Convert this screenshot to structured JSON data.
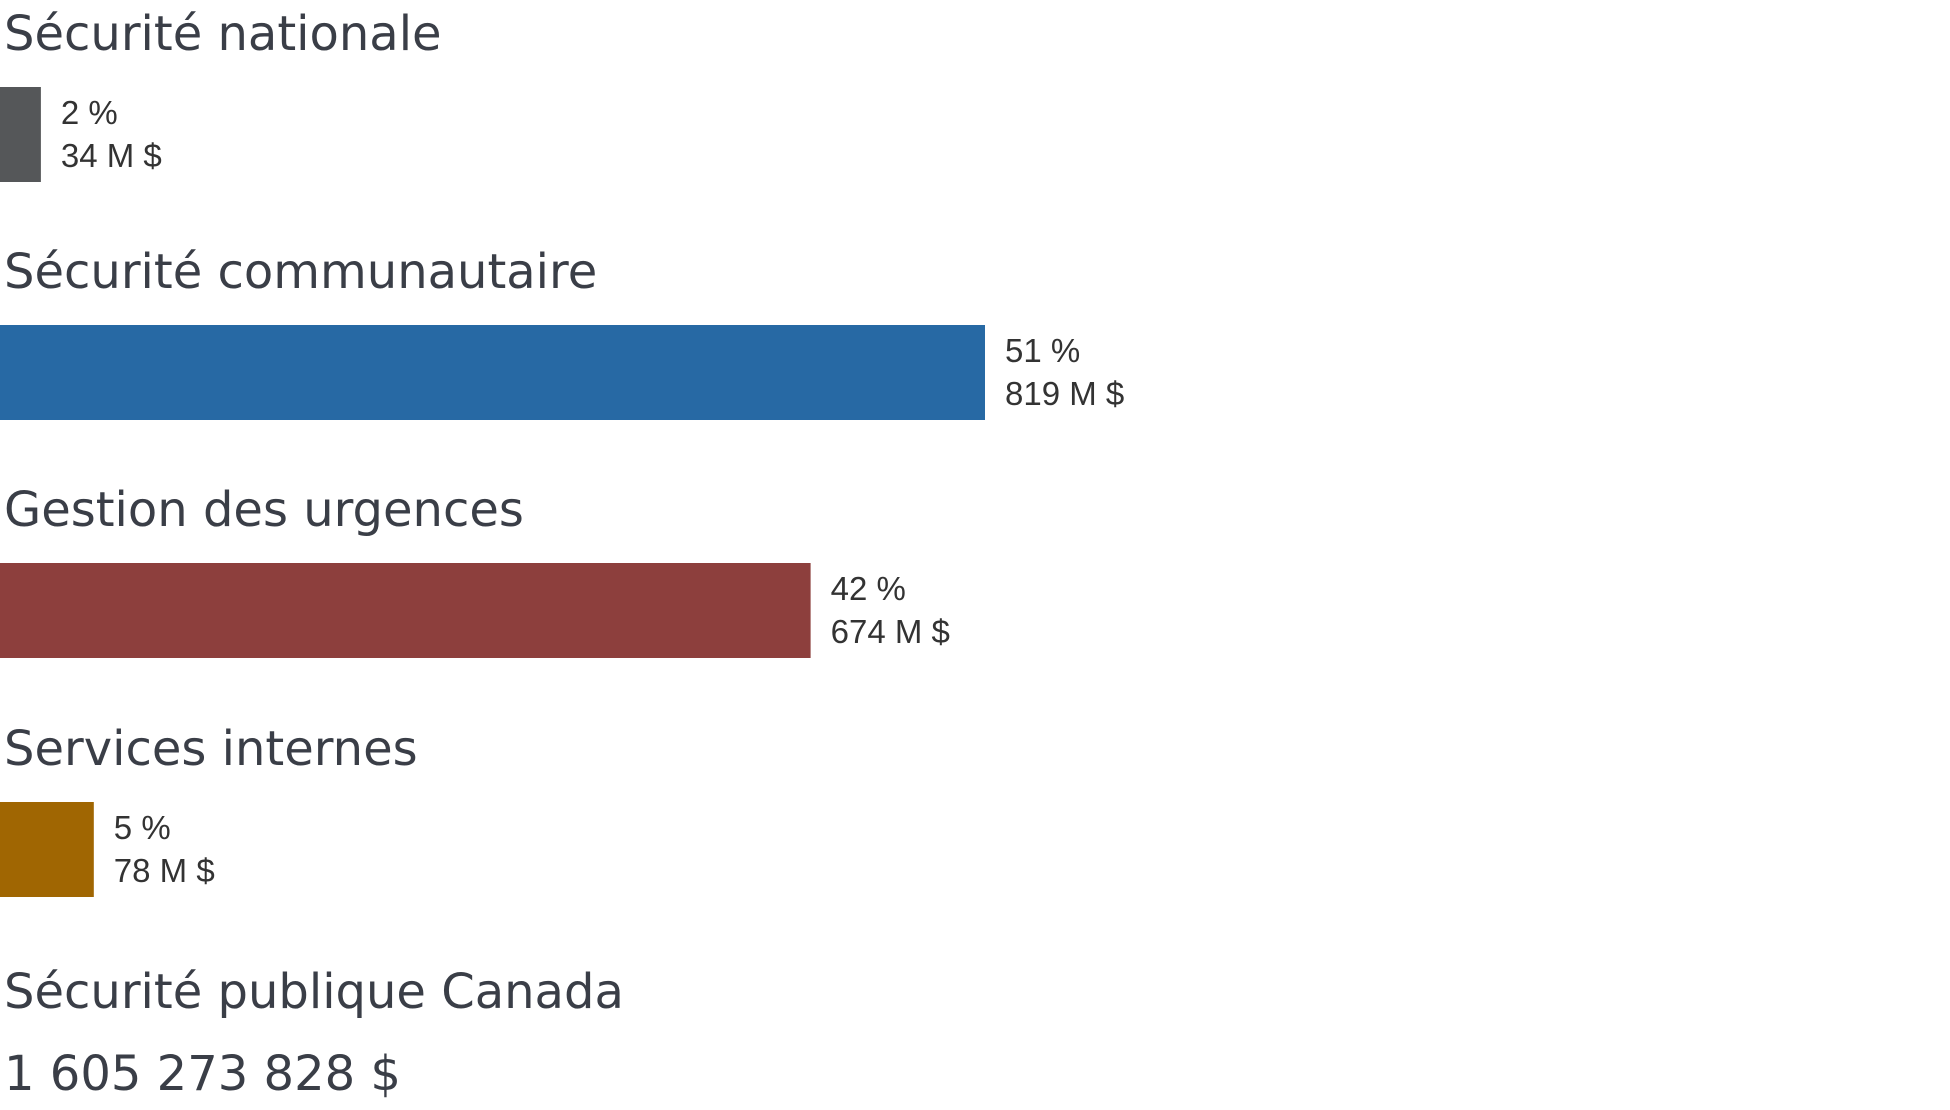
{
  "chart_data": {
    "type": "bar",
    "orientation": "horizontal",
    "categories": [
      "Sécurité nationale",
      "Sécurité communautaire",
      "Gestion des urgences",
      "Services internes"
    ],
    "values": [
      34,
      819,
      674,
      78
    ],
    "percent_labels": [
      "2 %",
      "51 %",
      "42 %",
      "5 %"
    ],
    "amount_labels": [
      "34 M $",
      "819 M $",
      "674 M $",
      "78 M $"
    ],
    "colors": [
      "#555759",
      "#2769a4",
      "#8d3f3d",
      "#a06602"
    ],
    "title": "",
    "xlabel": "",
    "ylabel": "",
    "xlim": [
      0,
      2000
    ],
    "grid": false,
    "legend": "none"
  },
  "footer": {
    "department": "Sécurité publique Canada",
    "total": "1 605 273 828 $"
  }
}
